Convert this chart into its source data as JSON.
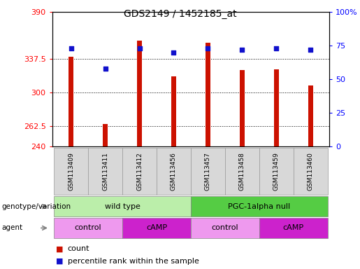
{
  "title": "GDS2149 / 1452185_at",
  "samples": [
    "GSM113409",
    "GSM113411",
    "GSM113412",
    "GSM113456",
    "GSM113457",
    "GSM113458",
    "GSM113459",
    "GSM113460"
  ],
  "count_values": [
    340,
    265,
    358,
    318,
    356,
    325,
    326,
    308
  ],
  "percentile_values": [
    73,
    58,
    73,
    70,
    73,
    72,
    73,
    72
  ],
  "ylim_left": [
    240,
    390
  ],
  "ylim_right": [
    0,
    100
  ],
  "yticks_left": [
    240,
    262.5,
    300,
    337.5,
    390
  ],
  "ytick_labels_left": [
    "240",
    "262.5",
    "300",
    "337.5",
    "390"
  ],
  "yticks_right": [
    0,
    25,
    50,
    75,
    100
  ],
  "ytick_labels_right": [
    "0",
    "25",
    "50",
    "75",
    "100%"
  ],
  "bar_color": "#cc1100",
  "dot_color": "#1111cc",
  "genotype_groups": [
    {
      "label": "wild type",
      "start": 0,
      "end": 4,
      "color": "#bbeeaa"
    },
    {
      "label": "PGC-1alpha null",
      "start": 4,
      "end": 8,
      "color": "#55cc44"
    }
  ],
  "agent_groups": [
    {
      "label": "control",
      "start": 0,
      "end": 2,
      "color": "#ee99ee"
    },
    {
      "label": "cAMP",
      "start": 2,
      "end": 4,
      "color": "#cc22cc"
    },
    {
      "label": "control",
      "start": 4,
      "end": 6,
      "color": "#ee99ee"
    },
    {
      "label": "cAMP",
      "start": 6,
      "end": 8,
      "color": "#cc22cc"
    }
  ],
  "legend_count_label": "count",
  "legend_pct_label": "percentile rank within the sample",
  "bar_width": 0.15,
  "title_fontsize": 10,
  "sample_fontsize": 6.5,
  "label_fontsize": 8,
  "tick_fontsize": 8,
  "legend_fontsize": 8
}
